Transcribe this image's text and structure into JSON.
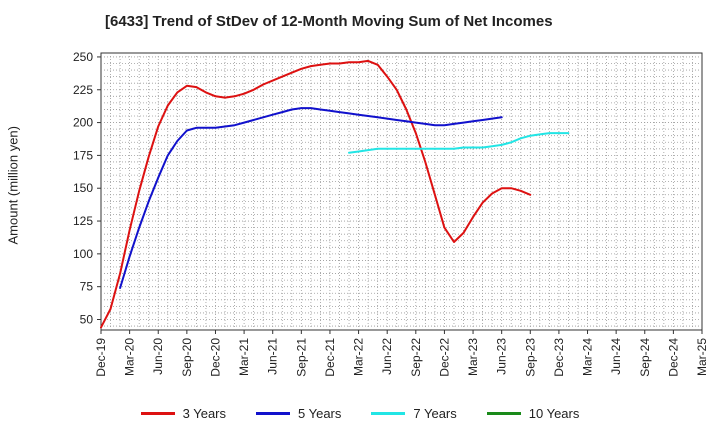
{
  "title": "[6433]  Trend of StDev of 12-Month Moving Sum of Net Incomes",
  "chart_data": {
    "type": "line",
    "title": "[6433]  Trend of StDev of 12-Month Moving Sum of Net Incomes",
    "ylabel": "Amount (million yen)",
    "xlabel": "",
    "ylim": [
      42,
      253
    ],
    "yticks": [
      50,
      75,
      100,
      125,
      150,
      175,
      200,
      225,
      250
    ],
    "x_tick_labels": [
      "Dec-19",
      "Mar-20",
      "Jun-20",
      "Sep-20",
      "Dec-20",
      "Mar-21",
      "Jun-21",
      "Sep-21",
      "Dec-21",
      "Mar-22",
      "Jun-22",
      "Sep-22",
      "Dec-22",
      "Mar-23",
      "Jun-23",
      "Sep-23",
      "Dec-23",
      "Mar-24",
      "Jun-24",
      "Sep-24",
      "Dec-24",
      "Mar-25"
    ],
    "grid": true,
    "legend_position": "bottom",
    "series": [
      {
        "name": "3 Years",
        "color": "#dd1111",
        "start_month": "Dec-19",
        "values": [
          44,
          58,
          85,
          118,
          148,
          174,
          197,
          213,
          223,
          228,
          227,
          223,
          220,
          219,
          220,
          222,
          225,
          229,
          232,
          235,
          238,
          241,
          243,
          244,
          245,
          245,
          246,
          246,
          247,
          244,
          235,
          225,
          210,
          192,
          170,
          145,
          120,
          109,
          116,
          128,
          139,
          146,
          150,
          150,
          148,
          145
        ]
      },
      {
        "name": "5 Years",
        "color": "#1111cc",
        "start_month": "Feb-20",
        "values": [
          74,
          98,
          120,
          140,
          158,
          175,
          186,
          194,
          196,
          196,
          196,
          197,
          198,
          200,
          202,
          204,
          206,
          208,
          210,
          211,
          211,
          210,
          209,
          208,
          207,
          206,
          205,
          204,
          203,
          202,
          201,
          200,
          199,
          198,
          198,
          199,
          200,
          201,
          202,
          203,
          204
        ]
      },
      {
        "name": "7 Years",
        "color": "#22e5e5",
        "start_month": "Feb-22",
        "values": [
          177,
          178,
          179,
          180,
          180,
          180,
          180,
          180,
          180,
          180,
          180,
          180,
          181,
          181,
          181,
          182,
          183,
          185,
          188,
          190,
          191,
          192,
          192,
          192
        ]
      },
      {
        "name": "10 Years",
        "color": "#1a8a1a",
        "start_month": "",
        "values": []
      }
    ]
  }
}
